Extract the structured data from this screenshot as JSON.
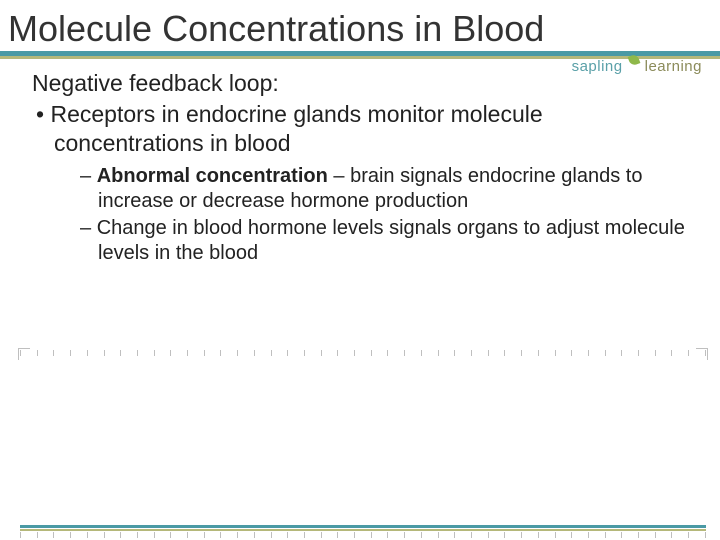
{
  "title": "Molecule Concentrations in Blood",
  "logo": {
    "word1": "sapling",
    "word2": "learning"
  },
  "colors": {
    "teal": "#4a9aa5",
    "olive": "#b5b87a",
    "text": "#222222",
    "tick": "#bfbfbf",
    "leaf": "#8fb84a"
  },
  "content": {
    "lead": "Negative feedback loop:",
    "bullet": "Receptors in endocrine glands monitor molecule concentrations in blood",
    "sub1_bold": "Abnormal concentration",
    "sub1_rest": " – brain signals endocrine glands to increase or decrease hormone production",
    "sub2": "Change in blood hormone levels signals organs to adjust molecule levels in the blood"
  },
  "layout": {
    "tick_count": 42
  }
}
